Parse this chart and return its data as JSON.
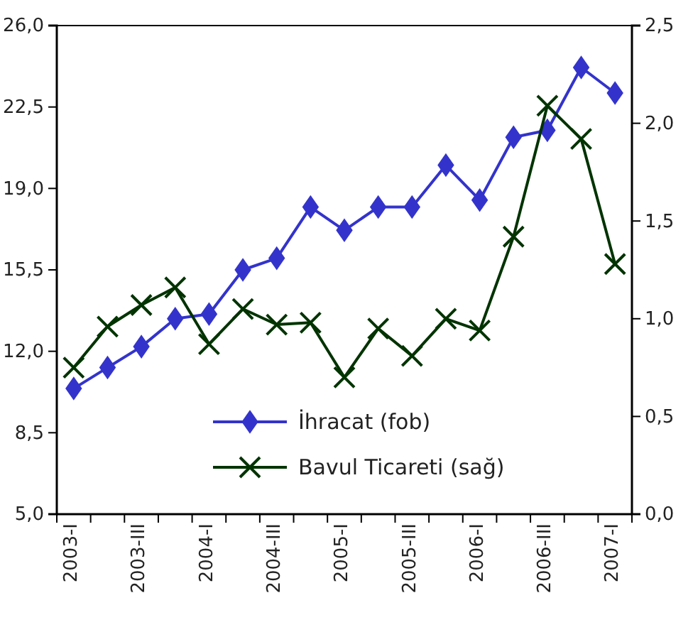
{
  "chart_data": {
    "type": "line",
    "categories": [
      "2003-I",
      null,
      "2003-III",
      null,
      "2004-I",
      null,
      "2004-III",
      null,
      "2005-I",
      null,
      "2005-III",
      null,
      "2006-I",
      null,
      "2006-III",
      null,
      "2007-I"
    ],
    "series": [
      {
        "name": "İhracat (fob)",
        "color": "#3333cc",
        "marker": "diamond",
        "values": [
          10.4,
          11.3,
          12.2,
          13.4,
          13.6,
          15.5,
          16.0,
          18.2,
          17.2,
          18.2,
          18.2,
          20.0,
          18.5,
          21.2,
          21.5,
          24.2,
          23.1
        ]
      },
      {
        "name": "Bavul Ticareti (sağ)",
        "color": "#003300",
        "marker": "cross",
        "axis": "y2",
        "values": [
          0.75,
          0.96,
          1.07,
          1.16,
          0.87,
          1.05,
          0.97,
          0.98,
          0.7,
          0.95,
          0.81,
          1.0,
          0.94,
          1.42,
          2.09,
          1.92,
          1.28
        ]
      }
    ],
    "ylim": [
      5,
      26
    ],
    "yticks": [
      {
        "value": 5,
        "label": "5,0"
      },
      {
        "value": 8.5,
        "label": "8,5"
      },
      {
        "value": 12,
        "label": "12,0"
      },
      {
        "value": 15.5,
        "label": "15,5"
      },
      {
        "value": 19,
        "label": "19,0"
      },
      {
        "value": 22.5,
        "label": "22,5"
      },
      {
        "value": 26,
        "label": "26,0"
      }
    ],
    "y2lim": [
      0,
      2.5
    ],
    "y2ticks": [
      {
        "value": 0,
        "label": "0,0"
      },
      {
        "value": 0.5,
        "label": "0,5"
      },
      {
        "value": 1,
        "label": "1,0"
      },
      {
        "value": 1.5,
        "label": "1,5"
      },
      {
        "value": 2,
        "label": "2,0"
      },
      {
        "value": 2.5,
        "label": "2,5"
      }
    ],
    "grid": false,
    "legend": "bottom",
    "line_style": "solid"
  }
}
